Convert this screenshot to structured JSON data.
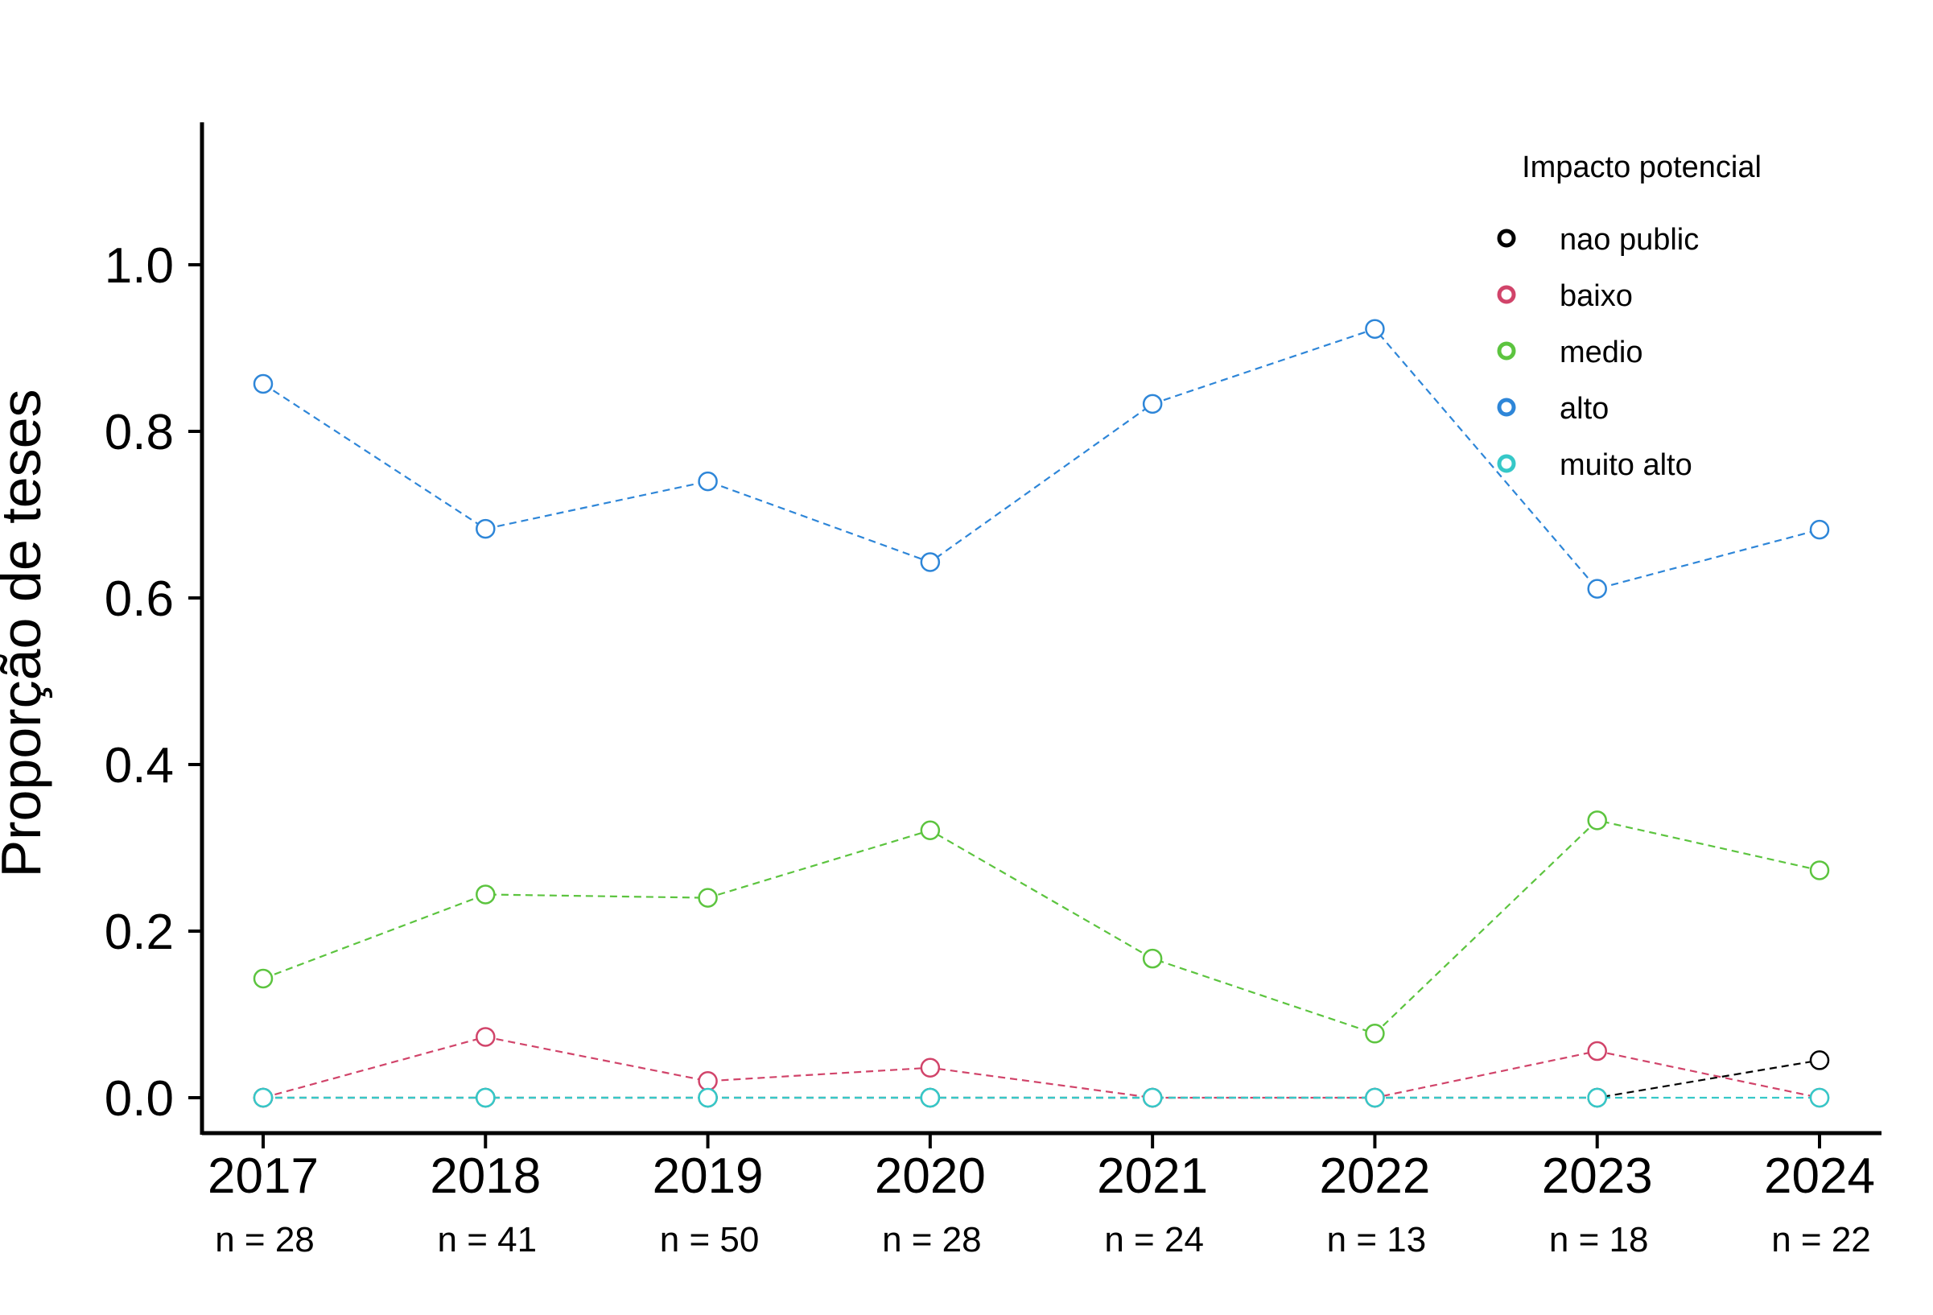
{
  "chart_data": {
    "type": "line",
    "title": "",
    "xlabel": "",
    "ylabel": "Proporção de teses",
    "ylim": [
      -0.045,
      1.17
    ],
    "yticks": [
      "0.0",
      "0.2",
      "0.4",
      "0.6",
      "0.8",
      "1.0"
    ],
    "ytick_values": [
      0,
      0.2,
      0.4,
      0.6,
      0.8,
      1.0
    ],
    "categories": [
      "2017",
      "2018",
      "2019",
      "2020",
      "2021",
      "2022",
      "2023",
      "2024"
    ],
    "counts": [
      "n =  28",
      "n =  41",
      "n =  50",
      "n =  28",
      "n =  24",
      "n =  13",
      "n =  18",
      "n =  22"
    ],
    "grid": false,
    "legend": {
      "title": "Impacto potencial",
      "position": "top-right"
    },
    "series": [
      {
        "name": "nao public",
        "color": "#000000",
        "values": [
          0,
          0,
          0,
          0,
          0,
          0,
          0,
          0.045
        ]
      },
      {
        "name": "baixo",
        "color": "#d1446a",
        "values": [
          0,
          0.073,
          0.02,
          0.036,
          0,
          0,
          0.056,
          0
        ]
      },
      {
        "name": "medio",
        "color": "#5cc43f",
        "values": [
          0.143,
          0.244,
          0.24,
          0.321,
          0.167,
          0.077,
          0.333,
          0.273
        ]
      },
      {
        "name": "alto",
        "color": "#2e86d8",
        "values": [
          0.857,
          0.683,
          0.74,
          0.643,
          0.833,
          0.923,
          0.611,
          0.682
        ]
      },
      {
        "name": "muito alto",
        "color": "#36c8c8",
        "values": [
          0,
          0,
          0,
          0,
          0,
          0,
          0,
          0
        ]
      }
    ]
  }
}
